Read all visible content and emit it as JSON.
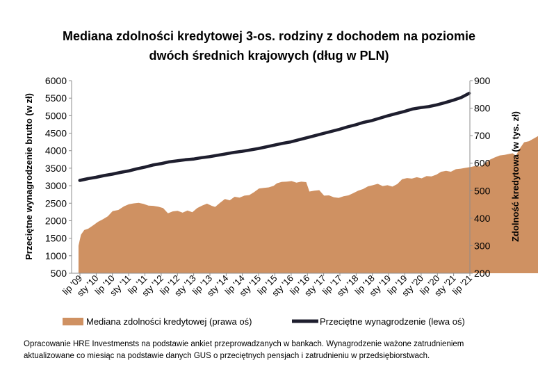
{
  "chart_data": {
    "type": "area+line",
    "title_line1": "Mediana zdolności kredytowej 3-os. rodziny z dochodem na poziomie",
    "title_line2": "dwóch średnich krajowych (dług w PLN)",
    "ylabel_left": "Przeciętne wynagrodzenie brutto (w zł)",
    "ylabel_right": "Zdolność kredytowa (w tys. zł)",
    "ylim_left": [
      500,
      6000
    ],
    "ylim_right": [
      200,
      900
    ],
    "yticks_left": [
      "500",
      "1000",
      "1500",
      "2000",
      "2500",
      "3000",
      "3500",
      "4000",
      "4500",
      "5000",
      "5500",
      "6000"
    ],
    "yticks_right": [
      "200",
      "300",
      "400",
      "500",
      "600",
      "700",
      "800",
      "900"
    ],
    "xticks": [
      "lip '09",
      "sty '10",
      "lip '10",
      "sty '11",
      "lip '11",
      "sty '12",
      "lip '12",
      "sty '13",
      "lip '13",
      "sty '14",
      "lip '14",
      "sty '15",
      "lip '15",
      "sty '16",
      "lip '16",
      "sty '17",
      "lip '17",
      "sty '18",
      "lip '18",
      "sty '19",
      "lip '19",
      "sty '20",
      "lip '20",
      "sty '21",
      "lip '21"
    ],
    "x_start": "2009-07",
    "x_end": "2021-07",
    "series": [
      {
        "name": "Mediana zdolności kredytowej (prawa oś)",
        "axis": "right",
        "color": "#CF9162",
        "points": [
          [
            0.0,
            300
          ],
          [
            0.15,
            340
          ],
          [
            0.35,
            357
          ],
          [
            0.6,
            362
          ],
          [
            0.9,
            374
          ],
          [
            1.2,
            387
          ],
          [
            1.5,
            396
          ],
          [
            1.8,
            407
          ],
          [
            2.1,
            426
          ],
          [
            2.45,
            430
          ],
          [
            2.8,
            443
          ],
          [
            3.1,
            451
          ],
          [
            3.4,
            454
          ],
          [
            3.7,
            456
          ],
          [
            4.0,
            452
          ],
          [
            4.3,
            446
          ],
          [
            4.6,
            445
          ],
          [
            4.9,
            442
          ],
          [
            5.2,
            437
          ],
          [
            5.5,
            418
          ],
          [
            5.8,
            425
          ],
          [
            6.1,
            427
          ],
          [
            6.4,
            420
          ],
          [
            6.7,
            428
          ],
          [
            7.0,
            422
          ],
          [
            7.3,
            437
          ],
          [
            7.6,
            446
          ],
          [
            7.9,
            453
          ],
          [
            8.2,
            445
          ],
          [
            8.4,
            441
          ],
          [
            8.7,
            456
          ],
          [
            9.0,
            470
          ],
          [
            9.3,
            465
          ],
          [
            9.6,
            478
          ],
          [
            9.9,
            475
          ],
          [
            10.2,
            482
          ],
          [
            10.5,
            484
          ],
          [
            10.8,
            495
          ],
          [
            11.1,
            508
          ],
          [
            11.4,
            510
          ],
          [
            11.7,
            512
          ],
          [
            12.0,
            518
          ],
          [
            12.2,
            527
          ],
          [
            12.5,
            532
          ],
          [
            12.8,
            533
          ],
          [
            13.1,
            535
          ],
          [
            13.4,
            529
          ],
          [
            13.7,
            533
          ],
          [
            14.0,
            531
          ],
          [
            14.2,
            497
          ],
          [
            14.5,
            500
          ],
          [
            14.8,
            502
          ],
          [
            15.1,
            482
          ],
          [
            15.4,
            483
          ],
          [
            15.7,
            476
          ],
          [
            16.0,
            474
          ],
          [
            16.3,
            480
          ],
          [
            16.6,
            483
          ],
          [
            16.9,
            491
          ],
          [
            17.2,
            500
          ],
          [
            17.5,
            506
          ],
          [
            17.8,
            516
          ],
          [
            18.1,
            520
          ],
          [
            18.4,
            525
          ],
          [
            18.7,
            517
          ],
          [
            19.0,
            520
          ],
          [
            19.3,
            515
          ],
          [
            19.6,
            524
          ],
          [
            19.9,
            542
          ],
          [
            20.2,
            546
          ],
          [
            20.5,
            544
          ],
          [
            20.8,
            549
          ],
          [
            21.1,
            545
          ],
          [
            21.4,
            553
          ],
          [
            21.7,
            552
          ],
          [
            22.0,
            558
          ],
          [
            22.3,
            569
          ],
          [
            22.6,
            572
          ],
          [
            22.9,
            569
          ],
          [
            23.2,
            578
          ],
          [
            23.5,
            580
          ],
          [
            23.8,
            583
          ],
          [
            24.1,
            586
          ],
          [
            24.4,
            590
          ],
          [
            24.7,
            588
          ],
          [
            25.0,
            599
          ],
          [
            25.3,
            613
          ],
          [
            25.6,
            621
          ],
          [
            25.9,
            628
          ],
          [
            26.2,
            630
          ],
          [
            26.5,
            634
          ],
          [
            26.7,
            636
          ],
          [
            26.9,
            627
          ],
          [
            27.1,
            650
          ],
          [
            27.4,
            676
          ],
          [
            27.7,
            680
          ],
          [
            28.0,
            690
          ],
          [
            28.3,
            700
          ],
          [
            28.6,
            715
          ],
          [
            28.9,
            729
          ],
          [
            29.2,
            731
          ],
          [
            29.5,
            734
          ],
          [
            29.8,
            735
          ],
          [
            30.1,
            735
          ],
          [
            30.4,
            722
          ],
          [
            30.7,
            712
          ],
          [
            30.9,
            710
          ],
          [
            31.0,
            690
          ]
        ]
      },
      {
        "name": "Przeciętne wynagrodzenie (lewa oś)",
        "axis": "left",
        "color": "#1E1E2E",
        "points": [
          [
            0.0,
            3150
          ],
          [
            1.0,
            3200
          ],
          [
            2.0,
            3240
          ],
          [
            3.0,
            3290
          ],
          [
            4.0,
            3330
          ],
          [
            5.0,
            3380
          ],
          [
            6.0,
            3420
          ],
          [
            7.0,
            3480
          ],
          [
            8.0,
            3530
          ],
          [
            9.0,
            3590
          ],
          [
            10.0,
            3630
          ],
          [
            11.0,
            3680
          ],
          [
            12.0,
            3710
          ],
          [
            13.0,
            3740
          ],
          [
            14.0,
            3760
          ],
          [
            15.0,
            3800
          ],
          [
            16.0,
            3830
          ],
          [
            17.0,
            3870
          ],
          [
            18.0,
            3910
          ],
          [
            19.0,
            3950
          ],
          [
            20.0,
            3980
          ],
          [
            21.0,
            4020
          ],
          [
            22.0,
            4060
          ],
          [
            23.0,
            4110
          ],
          [
            24.0,
            4160
          ],
          [
            25.0,
            4210
          ],
          [
            26.0,
            4250
          ],
          [
            27.0,
            4310
          ],
          [
            28.0,
            4370
          ],
          [
            29.0,
            4430
          ],
          [
            30.0,
            4490
          ],
          [
            31.0,
            4550
          ],
          [
            32.0,
            4610
          ],
          [
            33.0,
            4680
          ],
          [
            34.0,
            4740
          ],
          [
            35.0,
            4810
          ],
          [
            36.0,
            4860
          ],
          [
            37.0,
            4930
          ],
          [
            38.0,
            5000
          ],
          [
            39.0,
            5060
          ],
          [
            40.0,
            5120
          ],
          [
            41.0,
            5190
          ],
          [
            42.0,
            5230
          ],
          [
            43.0,
            5260
          ],
          [
            44.0,
            5310
          ],
          [
            45.0,
            5370
          ],
          [
            46.0,
            5440
          ],
          [
            47.0,
            5520
          ],
          [
            48.0,
            5640
          ]
        ]
      }
    ],
    "legend_position": "bottom",
    "grid": false
  },
  "footnote": "Opracowanie HRE Investmensts na podstawie ankiet przeprowadzanych w bankach. Wynagrodzenie ważone zatrudnieniem aktualizowane co miesiąc na podstawie danych GUS o przeciętnych pensjach i zatrudnieniu w przedsiębiorstwach."
}
